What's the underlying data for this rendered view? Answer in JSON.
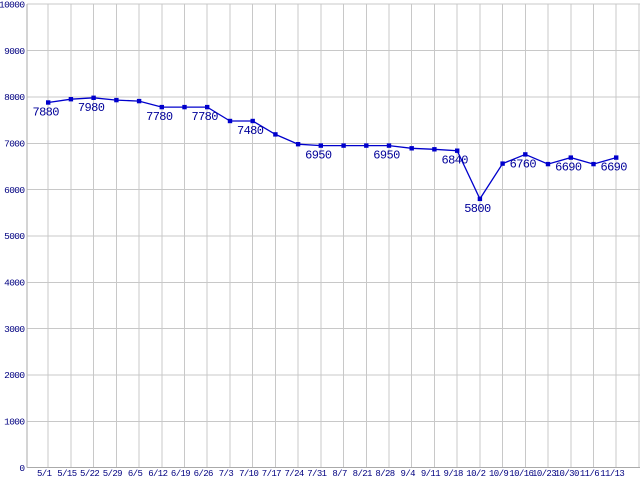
{
  "chart_data": {
    "type": "line",
    "title": "",
    "xlabel": "",
    "ylabel": "",
    "ylim": [
      0,
      10000
    ],
    "y_ticks": [
      0,
      1000,
      2000,
      3000,
      4000,
      5000,
      6000,
      7000,
      8000,
      9000,
      10000
    ],
    "grid": true,
    "legend": "none",
    "colors": {
      "line": "#0000cc",
      "marker": "#0000cc",
      "point_label_text": "#000099",
      "axis_label_text": "#000080",
      "gridline": "#c8c8c8",
      "axis_line": "#aaaaaa",
      "background": "#ffffff"
    },
    "categories": [
      "5/1",
      "5/15",
      "5/22",
      "5/29",
      "6/5",
      "6/12",
      "6/19",
      "6/26",
      "7/3",
      "7/10",
      "7/17",
      "7/24",
      "7/31",
      "8/7",
      "8/21",
      "8/28",
      "9/4",
      "9/11",
      "9/18",
      "10/2",
      "10/9",
      "10/16",
      "10/23",
      "10/30",
      "11/6",
      "11/13"
    ],
    "series": [
      {
        "name": "value",
        "values": [
          7880,
          7950,
          7980,
          7930,
          7910,
          7780,
          7780,
          7780,
          7480,
          7480,
          7190,
          6980,
          6950,
          6950,
          6950,
          6950,
          6890,
          6870,
          6840,
          5800,
          6560,
          6760,
          6550,
          6690,
          6550,
          6690
        ]
      }
    ],
    "point_labels": [
      "7880",
      null,
      "7980",
      null,
      null,
      "7780",
      null,
      "7780",
      null,
      "7480",
      null,
      null,
      "6950",
      null,
      null,
      "6950",
      null,
      null,
      "6840",
      "5800",
      null,
      "6760",
      null,
      "6690",
      null,
      "6690"
    ]
  }
}
